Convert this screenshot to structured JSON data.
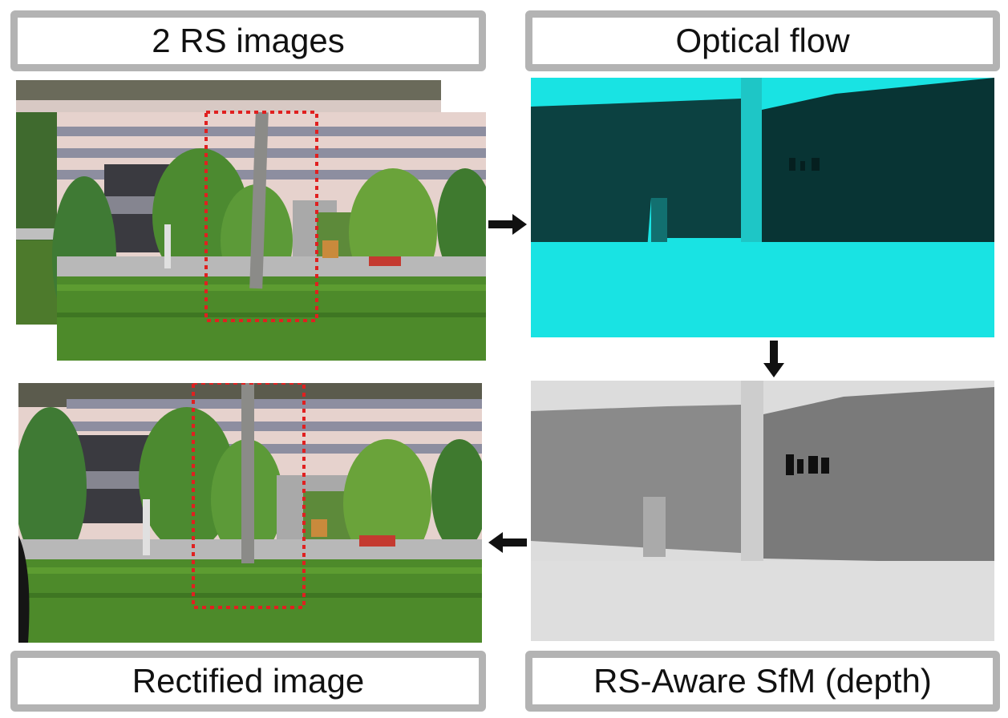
{
  "labels": {
    "rs_images": "2 RS images",
    "optical_flow": "Optical flow",
    "rectified_image": "Rectified image",
    "sfm_depth": "RS-Aware SfM (depth)"
  },
  "colors": {
    "label_border": "#b3b3b3",
    "roi_dash": "#e02020",
    "flow_cyan": "#19e3e3",
    "flow_dark": "#0b3b3b",
    "arrow": "#111111"
  },
  "icons": {
    "right_arrow": "arrow-right-icon",
    "down_arrow": "arrow-down-icon",
    "left_arrow": "arrow-left-icon"
  }
}
